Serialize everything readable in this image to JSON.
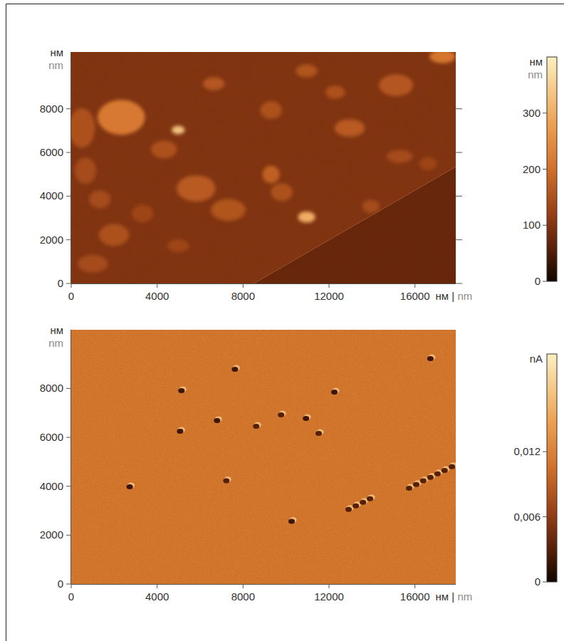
{
  "chart_data": [
    {
      "type": "image",
      "xlabel": [
        "нм",
        "|",
        "nm"
      ],
      "ylabel": [
        "нм",
        "nm"
      ],
      "xlim": [
        0,
        17900
      ],
      "ylim": [
        0,
        10600
      ],
      "xticks": [
        0,
        4000,
        8000,
        12000,
        16000
      ],
      "yticks": [
        0,
        2000,
        4000,
        6000,
        8000
      ],
      "colorbar": {
        "label": [
          "нм",
          "nm"
        ],
        "range": [
          0,
          400
        ],
        "ticks": [
          0,
          100,
          200,
          300
        ]
      },
      "base_height": 95,
      "step": {
        "x": [
          8500,
          18000
        ],
        "y": [
          0,
          5400
        ],
        "height": 70
      },
      "features": [
        {
          "x": 2330,
          "y": 7610,
          "rx": 1100,
          "ry": 800,
          "height": 215
        },
        {
          "x": 4980,
          "y": 7030,
          "rx": 300,
          "ry": 200,
          "height": 330
        },
        {
          "x": 500,
          "y": 7120,
          "rx": 600,
          "ry": 900,
          "height": 150
        },
        {
          "x": 660,
          "y": 5160,
          "rx": 500,
          "ry": 600,
          "height": 140
        },
        {
          "x": 6640,
          "y": 9150,
          "rx": 500,
          "ry": 300,
          "height": 160
        },
        {
          "x": 9300,
          "y": 7940,
          "rx": 500,
          "ry": 400,
          "height": 150
        },
        {
          "x": 10960,
          "y": 9740,
          "rx": 500,
          "ry": 300,
          "height": 155
        },
        {
          "x": 12290,
          "y": 8760,
          "rx": 450,
          "ry": 300,
          "height": 150
        },
        {
          "x": 12960,
          "y": 7120,
          "rx": 700,
          "ry": 400,
          "height": 165
        },
        {
          "x": 15120,
          "y": 9080,
          "rx": 800,
          "ry": 500,
          "height": 160
        },
        {
          "x": 17280,
          "y": 10390,
          "rx": 600,
          "ry": 300,
          "height": 210
        },
        {
          "x": 9300,
          "y": 5000,
          "rx": 400,
          "ry": 400,
          "height": 175
        },
        {
          "x": 5810,
          "y": 4350,
          "rx": 900,
          "ry": 600,
          "height": 165
        },
        {
          "x": 7310,
          "y": 3370,
          "rx": 800,
          "ry": 500,
          "height": 155
        },
        {
          "x": 10960,
          "y": 3040,
          "rx": 400,
          "ry": 250,
          "height": 300
        },
        {
          "x": 9800,
          "y": 4180,
          "rx": 500,
          "ry": 400,
          "height": 150
        },
        {
          "x": 4320,
          "y": 6140,
          "rx": 600,
          "ry": 400,
          "height": 150
        },
        {
          "x": 1990,
          "y": 2220,
          "rx": 700,
          "ry": 500,
          "height": 150
        },
        {
          "x": 1330,
          "y": 3860,
          "rx": 500,
          "ry": 400,
          "height": 140
        },
        {
          "x": 3320,
          "y": 3200,
          "rx": 500,
          "ry": 400,
          "height": 130
        },
        {
          "x": 4980,
          "y": 1730,
          "rx": 500,
          "ry": 300,
          "height": 130
        },
        {
          "x": 1000,
          "y": 900,
          "rx": 700,
          "ry": 400,
          "height": 140
        },
        {
          "x": 13950,
          "y": 3530,
          "rx": 400,
          "ry": 300,
          "height": 140
        },
        {
          "x": 15280,
          "y": 5820,
          "rx": 600,
          "ry": 300,
          "height": 140
        },
        {
          "x": 16610,
          "y": 5490,
          "rx": 400,
          "ry": 300,
          "height": 130
        }
      ]
    },
    {
      "type": "image",
      "xlabel": [
        "нм",
        "|",
        "nm"
      ],
      "ylabel": [
        "нм",
        "nm"
      ],
      "xlim": [
        0,
        17900
      ],
      "ylim": [
        0,
        10400
      ],
      "xticks": [
        0,
        4000,
        8000,
        12000,
        16000
      ],
      "yticks": [
        0,
        2000,
        4000,
        6000,
        8000
      ],
      "colorbar": {
        "label": [
          "nA"
        ],
        "range": [
          0,
          0.021
        ],
        "ticks": [
          0,
          {
            "value": 0.006,
            "label": "0,006"
          },
          {
            "value": 0.012,
            "label": "0,012"
          }
        ]
      },
      "base_value": 0.01,
      "spots": [
        {
          "x": 7620,
          "y": 8780,
          "value": 0.002
        },
        {
          "x": 5130,
          "y": 7910,
          "value": 0.002
        },
        {
          "x": 12250,
          "y": 7850,
          "value": 0.002
        },
        {
          "x": 16720,
          "y": 9220,
          "value": 0.002
        },
        {
          "x": 5070,
          "y": 6250,
          "value": 0.002
        },
        {
          "x": 6790,
          "y": 6690,
          "value": 0.002
        },
        {
          "x": 9770,
          "y": 6920,
          "value": 0.003
        },
        {
          "x": 10930,
          "y": 6770,
          "value": 0.002
        },
        {
          "x": 8610,
          "y": 6450,
          "value": 0.003
        },
        {
          "x": 11520,
          "y": 6160,
          "value": 0.003
        },
        {
          "x": 2720,
          "y": 3980,
          "value": 0.002
        },
        {
          "x": 7220,
          "y": 4220,
          "value": 0.003
        },
        {
          "x": 10260,
          "y": 2560,
          "value": 0.002
        },
        {
          "x": 12910,
          "y": 3050,
          "value": 0.003
        },
        {
          "x": 13250,
          "y": 3200,
          "value": 0.003
        },
        {
          "x": 13580,
          "y": 3340,
          "value": 0.003
        },
        {
          "x": 13910,
          "y": 3490,
          "value": 0.003
        },
        {
          "x": 15730,
          "y": 3920,
          "value": 0.003
        },
        {
          "x": 16060,
          "y": 4070,
          "value": 0.003
        },
        {
          "x": 16390,
          "y": 4220,
          "value": 0.003
        },
        {
          "x": 16720,
          "y": 4360,
          "value": 0.003
        },
        {
          "x": 17050,
          "y": 4510,
          "value": 0.003
        },
        {
          "x": 17380,
          "y": 4650,
          "value": 0.003
        },
        {
          "x": 17720,
          "y": 4800,
          "value": 0.003
        }
      ]
    }
  ]
}
